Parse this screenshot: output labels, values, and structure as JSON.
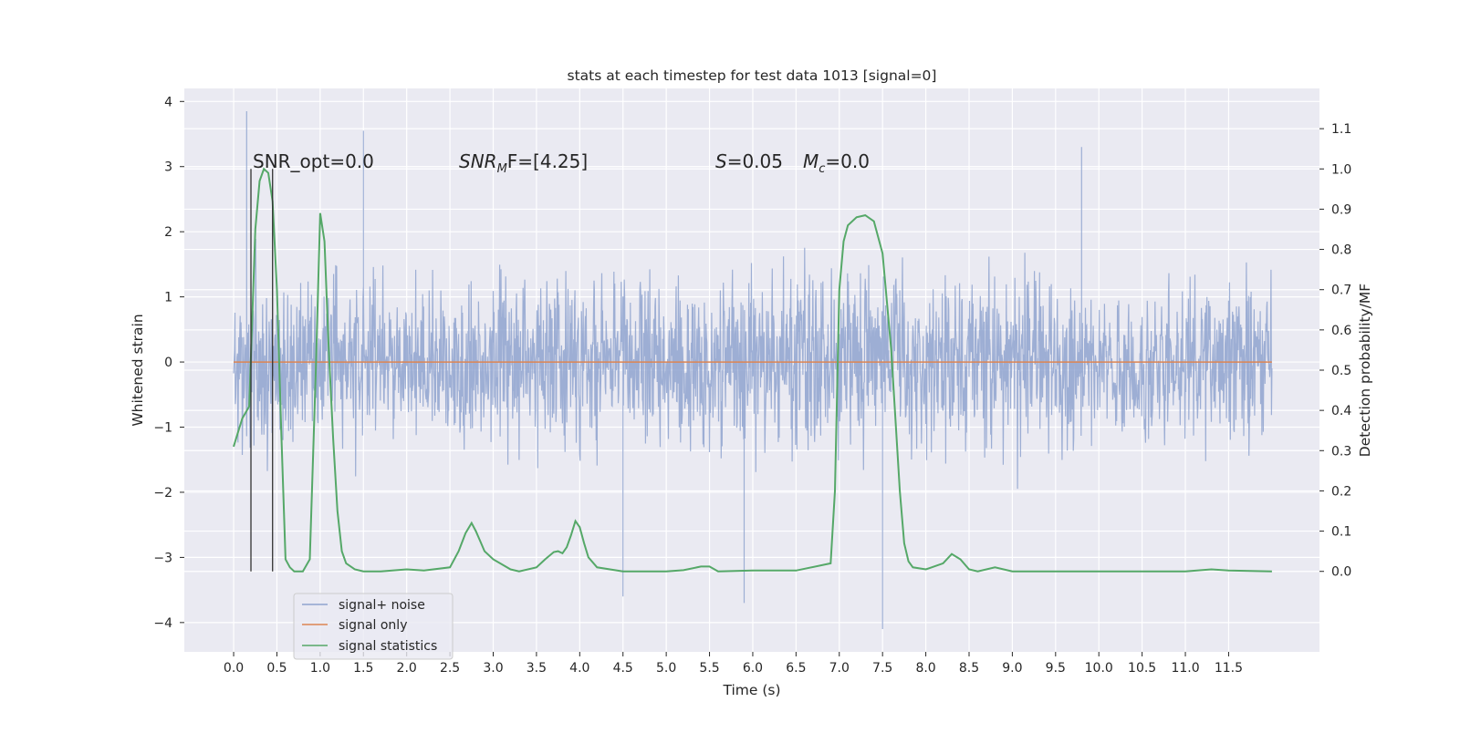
{
  "chart_data": {
    "type": "line",
    "title": "stats at each timestep for test data 1013 [signal=0]",
    "xlabel": "Time (s)",
    "ylabel_left": "Whitened strain",
    "ylabel_right": "Detection probability/MF",
    "xlim": [
      -0.57,
      12.55
    ],
    "ylim_left": [
      -4.45,
      4.2
    ],
    "ylim_right": [
      -0.2,
      1.2
    ],
    "x_ticks": [
      "0.0",
      "0.5",
      "1.0",
      "1.5",
      "2.0",
      "2.5",
      "3.0",
      "3.5",
      "4.0",
      "4.5",
      "5.0",
      "5.5",
      "6.0",
      "6.5",
      "7.0",
      "7.5",
      "8.0",
      "8.5",
      "9.0",
      "9.5",
      "10.0",
      "10.5",
      "11.0",
      "11.5"
    ],
    "y_ticks_left": [
      "−4",
      "−3",
      "−2",
      "−1",
      "0",
      "1",
      "2",
      "3",
      "4"
    ],
    "y_ticks_right": [
      "0.0",
      "0.1",
      "0.2",
      "0.3",
      "0.4",
      "0.5",
      "0.6",
      "0.7",
      "0.8",
      "0.9",
      "1.0",
      "1.1"
    ],
    "grid": true,
    "legend_position": "lower-left",
    "annotations": {
      "snr_opt": "SNR_opt=0.0",
      "snr_mf_base": "SNR",
      "snr_mf_sub": "M",
      "snr_mf_rest": "F=[4.25]",
      "s_sym": "S",
      "s_val": "=0.05",
      "mc_sym": "M",
      "mc_sub": "c",
      "mc_val": "=0.0"
    },
    "vertical_markers_x": [
      0.2,
      0.45
    ],
    "series": [
      {
        "name": "signal+ noise",
        "color": "#8fa3cf",
        "axis": "left",
        "x_range": [
          0.0,
          12.0
        ],
        "approx_envelope_top": [
          2.0,
          3.0
        ],
        "approx_envelope_bottom": [
          -2.0,
          -3.0
        ],
        "notable_peaks": [
          [
            0.15,
            3.85
          ],
          [
            1.5,
            3.55
          ],
          [
            9.8,
            3.3
          ],
          [
            7.5,
            -4.1
          ],
          [
            4.5,
            -3.6
          ],
          [
            5.9,
            -3.7
          ]
        ]
      },
      {
        "name": "signal only",
        "color": "#dd8452",
        "axis": "left",
        "x": [
          0.0,
          12.0
        ],
        "y": [
          0.0,
          0.0
        ]
      },
      {
        "name": "signal statistics",
        "color": "#55a868",
        "axis": "right",
        "x": [
          0.0,
          0.1,
          0.18,
          0.25,
          0.3,
          0.35,
          0.4,
          0.45,
          0.5,
          0.55,
          0.6,
          0.65,
          0.7,
          0.8,
          0.88,
          0.95,
          1.0,
          1.05,
          1.1,
          1.15,
          1.2,
          1.25,
          1.3,
          1.4,
          1.5,
          1.7,
          2.0,
          2.2,
          2.5,
          2.6,
          2.68,
          2.75,
          2.8,
          2.85,
          2.9,
          3.0,
          3.2,
          3.3,
          3.5,
          3.6,
          3.7,
          3.75,
          3.8,
          3.85,
          3.9,
          3.95,
          4.0,
          4.05,
          4.1,
          4.2,
          4.5,
          5.0,
          5.2,
          5.4,
          5.5,
          5.6,
          6.0,
          6.5,
          6.9,
          6.95,
          7.0,
          7.05,
          7.1,
          7.2,
          7.3,
          7.4,
          7.5,
          7.6,
          7.7,
          7.75,
          7.8,
          7.85,
          8.0,
          8.2,
          8.3,
          8.4,
          8.5,
          8.6,
          8.8,
          9.0,
          10.0,
          11.0,
          11.3,
          11.5,
          12.0
        ],
        "y": [
          0.31,
          0.38,
          0.41,
          0.85,
          0.97,
          1.0,
          0.99,
          0.92,
          0.7,
          0.35,
          0.03,
          0.01,
          0.0,
          0.0,
          0.03,
          0.5,
          0.89,
          0.82,
          0.55,
          0.33,
          0.15,
          0.05,
          0.02,
          0.005,
          0.0,
          0.0,
          0.005,
          0.002,
          0.01,
          0.05,
          0.095,
          0.12,
          0.1,
          0.075,
          0.05,
          0.03,
          0.005,
          0.0,
          0.01,
          0.03,
          0.048,
          0.05,
          0.045,
          0.06,
          0.09,
          0.125,
          0.11,
          0.07,
          0.035,
          0.01,
          0.0,
          0.0,
          0.003,
          0.012,
          0.012,
          0.0,
          0.002,
          0.002,
          0.02,
          0.2,
          0.7,
          0.82,
          0.86,
          0.88,
          0.885,
          0.87,
          0.79,
          0.55,
          0.2,
          0.07,
          0.025,
          0.01,
          0.005,
          0.02,
          0.043,
          0.03,
          0.005,
          0.0,
          0.01,
          0.0,
          0.0,
          0.0,
          0.005,
          0.002,
          0.0
        ]
      }
    ]
  }
}
